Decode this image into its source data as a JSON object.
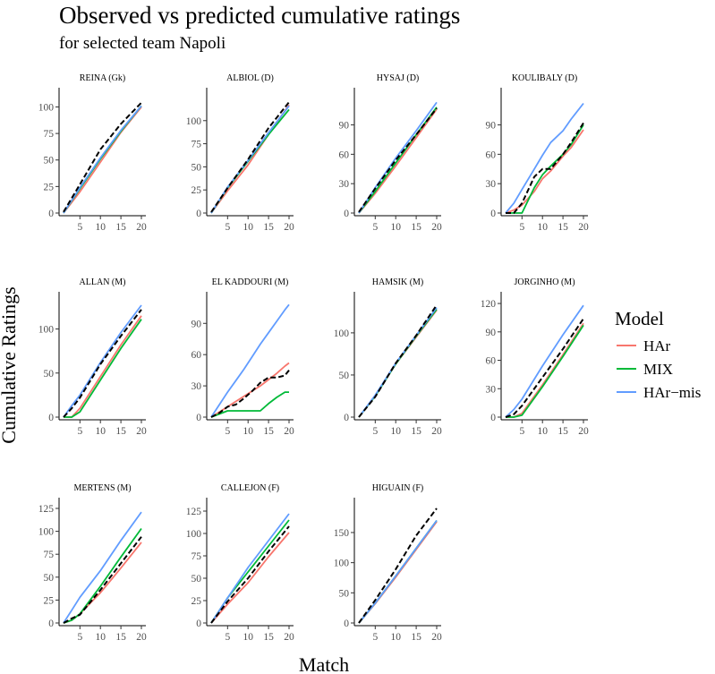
{
  "chart_data": {
    "type": "line",
    "title": "Observed vs predicted cumulative ratings",
    "subtitle": "for selected team Napoli",
    "xlabel": "Match",
    "ylabel": "Cumulative Ratings",
    "legend": {
      "title": "Model",
      "placement": "right",
      "items": [
        {
          "label": "HAr",
          "color": "#F8766D"
        },
        {
          "label": "MIX",
          "color": "#00BA38"
        },
        {
          "label": "HAr−mis",
          "color": "#619CFF"
        }
      ]
    },
    "observed_style": {
      "color": "#000000",
      "dash": "dashed"
    },
    "x_ticks": [
      "5",
      "10",
      "15",
      "20"
    ],
    "xlim": [
      1,
      20
    ],
    "grid": false,
    "panels": [
      {
        "name": "REINA (Gk)",
        "ylim": [
          0,
          108
        ],
        "yticks": [
          0,
          25,
          50,
          75,
          100
        ],
        "x": [
          1,
          5,
          10,
          15,
          20
        ],
        "series": {
          "observed": [
            1,
            27,
            60,
            84,
            104
          ],
          "HAr": [
            0,
            20,
            48,
            76,
            100
          ],
          "MIX": [
            0,
            23,
            51,
            77,
            101
          ],
          "HAr-mis": [
            0,
            24,
            52,
            78,
            101
          ]
        }
      },
      {
        "name": "ALBIOL (D)",
        "ylim": [
          0,
          124
        ],
        "yticks": [
          0,
          25,
          50,
          75,
          100
        ],
        "x": [
          1,
          5,
          10,
          15,
          20
        ],
        "series": {
          "observed": [
            1,
            27,
            58,
            92,
            120
          ],
          "HAr": [
            0,
            24,
            52,
            85,
            117
          ],
          "MIX": [
            0,
            27,
            56,
            85,
            112
          ],
          "HAr-mis": [
            0,
            28,
            57,
            87,
            116
          ]
        }
      },
      {
        "name": "HYSAJ (D)",
        "ylim": [
          0,
          117
        ],
        "yticks": [
          0,
          30,
          60,
          90
        ],
        "x": [
          1,
          5,
          10,
          15,
          20
        ],
        "series": {
          "observed": [
            1,
            25,
            54,
            80,
            107
          ],
          "HAr": [
            0,
            20,
            48,
            77,
            106
          ],
          "MIX": [
            0,
            22,
            51,
            80,
            108
          ],
          "HAr-mis": [
            0,
            26,
            56,
            84,
            113
          ]
        }
      },
      {
        "name": "KOULIBALY (D)",
        "ylim": [
          0,
          117
        ],
        "yticks": [
          0,
          30,
          60,
          90
        ],
        "x": [
          1,
          3,
          5,
          8,
          10,
          12,
          15,
          17,
          20
        ],
        "series": {
          "observed": [
            0,
            0,
            10,
            37,
            45,
            45,
            60,
            72,
            92
          ],
          "HAr": [
            0,
            3,
            8,
            22,
            35,
            43,
            58,
            67,
            85
          ],
          "MIX": [
            0,
            0,
            0,
            26,
            39,
            48,
            60,
            70,
            90
          ],
          "HAr-mis": [
            0,
            10,
            24,
            45,
            59,
            72,
            84,
            96,
            112
          ]
        }
      },
      {
        "name": "ALLAN (M)",
        "ylim": [
          0,
          130
        ],
        "yticks": [
          0,
          50,
          100
        ],
        "x": [
          1,
          3,
          5,
          10,
          15,
          20
        ],
        "series": {
          "observed": [
            0,
            10,
            22,
            60,
            92,
            122
          ],
          "HAr": [
            0,
            0,
            10,
            46,
            82,
            115
          ],
          "MIX": [
            0,
            0,
            6,
            42,
            78,
            111
          ],
          "HAr-mis": [
            0,
            13,
            25,
            62,
            96,
            127
          ]
        }
      },
      {
        "name": "EL KADDOURI (M)",
        "ylim": [
          0,
          110
        ],
        "yticks": [
          0,
          30,
          60,
          90
        ],
        "x": [
          1,
          3,
          5,
          7,
          9,
          11,
          13,
          15,
          17,
          19,
          20
        ],
        "series": {
          "observed": [
            0,
            4,
            10,
            12,
            18,
            25,
            33,
            38,
            38,
            40,
            45
          ],
          "HAr": [
            0,
            5,
            10,
            15,
            20,
            25,
            30,
            36,
            42,
            49,
            52
          ],
          "MIX": [
            0,
            3,
            6,
            6,
            6,
            6,
            6,
            13,
            19,
            24,
            24
          ],
          "HAr-mis": [
            0,
            12,
            24,
            35,
            46,
            58,
            70,
            81,
            92,
            103,
            108
          ]
        }
      },
      {
        "name": "HAMSIK (M)",
        "ylim": [
          0,
          136
        ],
        "yticks": [
          0,
          50,
          100
        ],
        "x": [
          1,
          5,
          10,
          15,
          20
        ],
        "series": {
          "observed": [
            0,
            24,
            64,
            97,
            133
          ],
          "HAr": [
            0,
            25,
            63,
            95,
            127
          ],
          "MIX": [
            0,
            25,
            63,
            96,
            128
          ],
          "HAr-mis": [
            0,
            26,
            64,
            97,
            130
          ]
        }
      },
      {
        "name": "JORGINHO (M)",
        "ylim": [
          0,
          121
        ],
        "yticks": [
          0,
          30,
          60,
          90,
          120
        ],
        "x": [
          1,
          3,
          5,
          10,
          15,
          20
        ],
        "series": {
          "observed": [
            0,
            3,
            12,
            42,
            72,
            104
          ],
          "HAr": [
            0,
            0,
            4,
            34,
            66,
            99
          ],
          "MIX": [
            0,
            0,
            2,
            32,
            64,
            97
          ],
          "HAr-mis": [
            0,
            8,
            19,
            54,
            87,
            118
          ]
        }
      },
      {
        "name": "MERTENS (M)",
        "ylim": [
          0,
          125
        ],
        "yticks": [
          0,
          25,
          50,
          75,
          100,
          125
        ],
        "x": [
          1,
          3,
          5,
          10,
          15,
          20
        ],
        "series": {
          "observed": [
            0,
            5,
            9,
            36,
            65,
            94
          ],
          "HAr": [
            0,
            3,
            10,
            33,
            60,
            88
          ],
          "MIX": [
            0,
            3,
            10,
            40,
            72,
            103
          ],
          "HAr-mis": [
            0,
            14,
            28,
            57,
            90,
            121
          ]
        }
      },
      {
        "name": "CALLEJON (F)",
        "ylim": [
          0,
          128
        ],
        "yticks": [
          0,
          25,
          50,
          75,
          100,
          125
        ],
        "x": [
          1,
          5,
          10,
          15,
          20
        ],
        "series": {
          "observed": [
            0,
            24,
            50,
            80,
            108
          ],
          "HAr": [
            0,
            21,
            45,
            74,
            101
          ],
          "MIX": [
            0,
            28,
            57,
            86,
            115
          ],
          "HAr-mis": [
            0,
            28,
            62,
            92,
            122
          ]
        }
      },
      {
        "name": "HIGUAIN (F)",
        "ylim": [
          0,
          190
        ],
        "yticks": [
          0,
          50,
          100,
          150
        ],
        "x": [
          1,
          5,
          10,
          15,
          20
        ],
        "series": {
          "observed": [
            0,
            38,
            89,
            145,
            190
          ],
          "HAr": [
            0,
            32,
            76,
            122,
            168
          ],
          "MIX": [
            0,
            33,
            78,
            124,
            170
          ],
          "HAr-mis": [
            0,
            33,
            78,
            124,
            170
          ]
        }
      }
    ]
  }
}
